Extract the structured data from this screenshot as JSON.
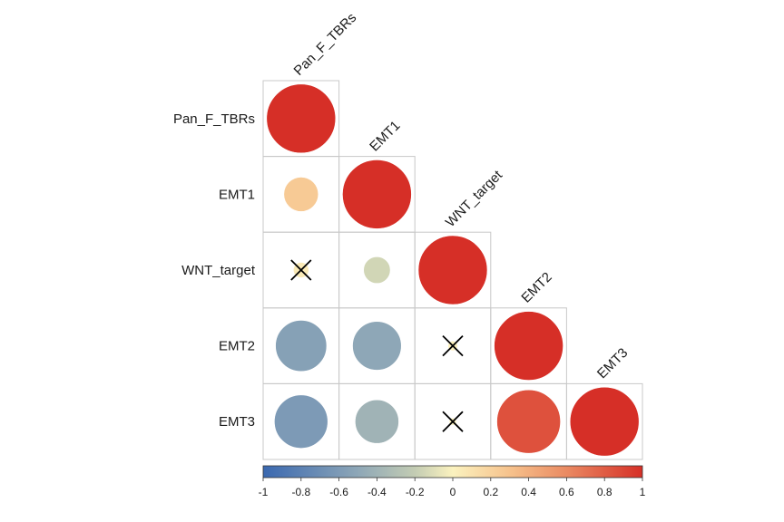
{
  "chart_data": {
    "type": "heatmap",
    "style": "correlation plot (lower triangle, circles)",
    "variables": [
      "Pan_F_TBRs",
      "EMT1",
      "WNT_target",
      "EMT2",
      "EMT3"
    ],
    "matrix": [
      [
        1.0,
        null,
        null,
        null,
        null
      ],
      [
        0.25,
        1.0,
        null,
        null,
        null
      ],
      [
        0.05,
        -0.15,
        1.0,
        null,
        null
      ],
      [
        -0.55,
        -0.5,
        0.02,
        1.0,
        null
      ],
      [
        -0.6,
        -0.4,
        0.0,
        0.85,
        1.0
      ]
    ],
    "insignificant": [
      [
        2,
        0
      ],
      [
        3,
        2
      ],
      [
        4,
        2
      ]
    ],
    "colorbar": {
      "min": -1,
      "max": 1,
      "ticks": [
        "-1",
        "-0.8",
        "-0.6",
        "-0.4",
        "-0.2",
        "0",
        "0.2",
        "0.4",
        "0.6",
        "0.8",
        "1"
      ],
      "colors": {
        "neg": "#3f6db5",
        "neutral": "#fbf2bf",
        "pos": "#d62f27",
        "mid_neg": "#a8bcb6",
        "mid_pos": "#f6b076"
      }
    },
    "grid_color": "#c8c8c8",
    "cross_color": "#000000"
  }
}
